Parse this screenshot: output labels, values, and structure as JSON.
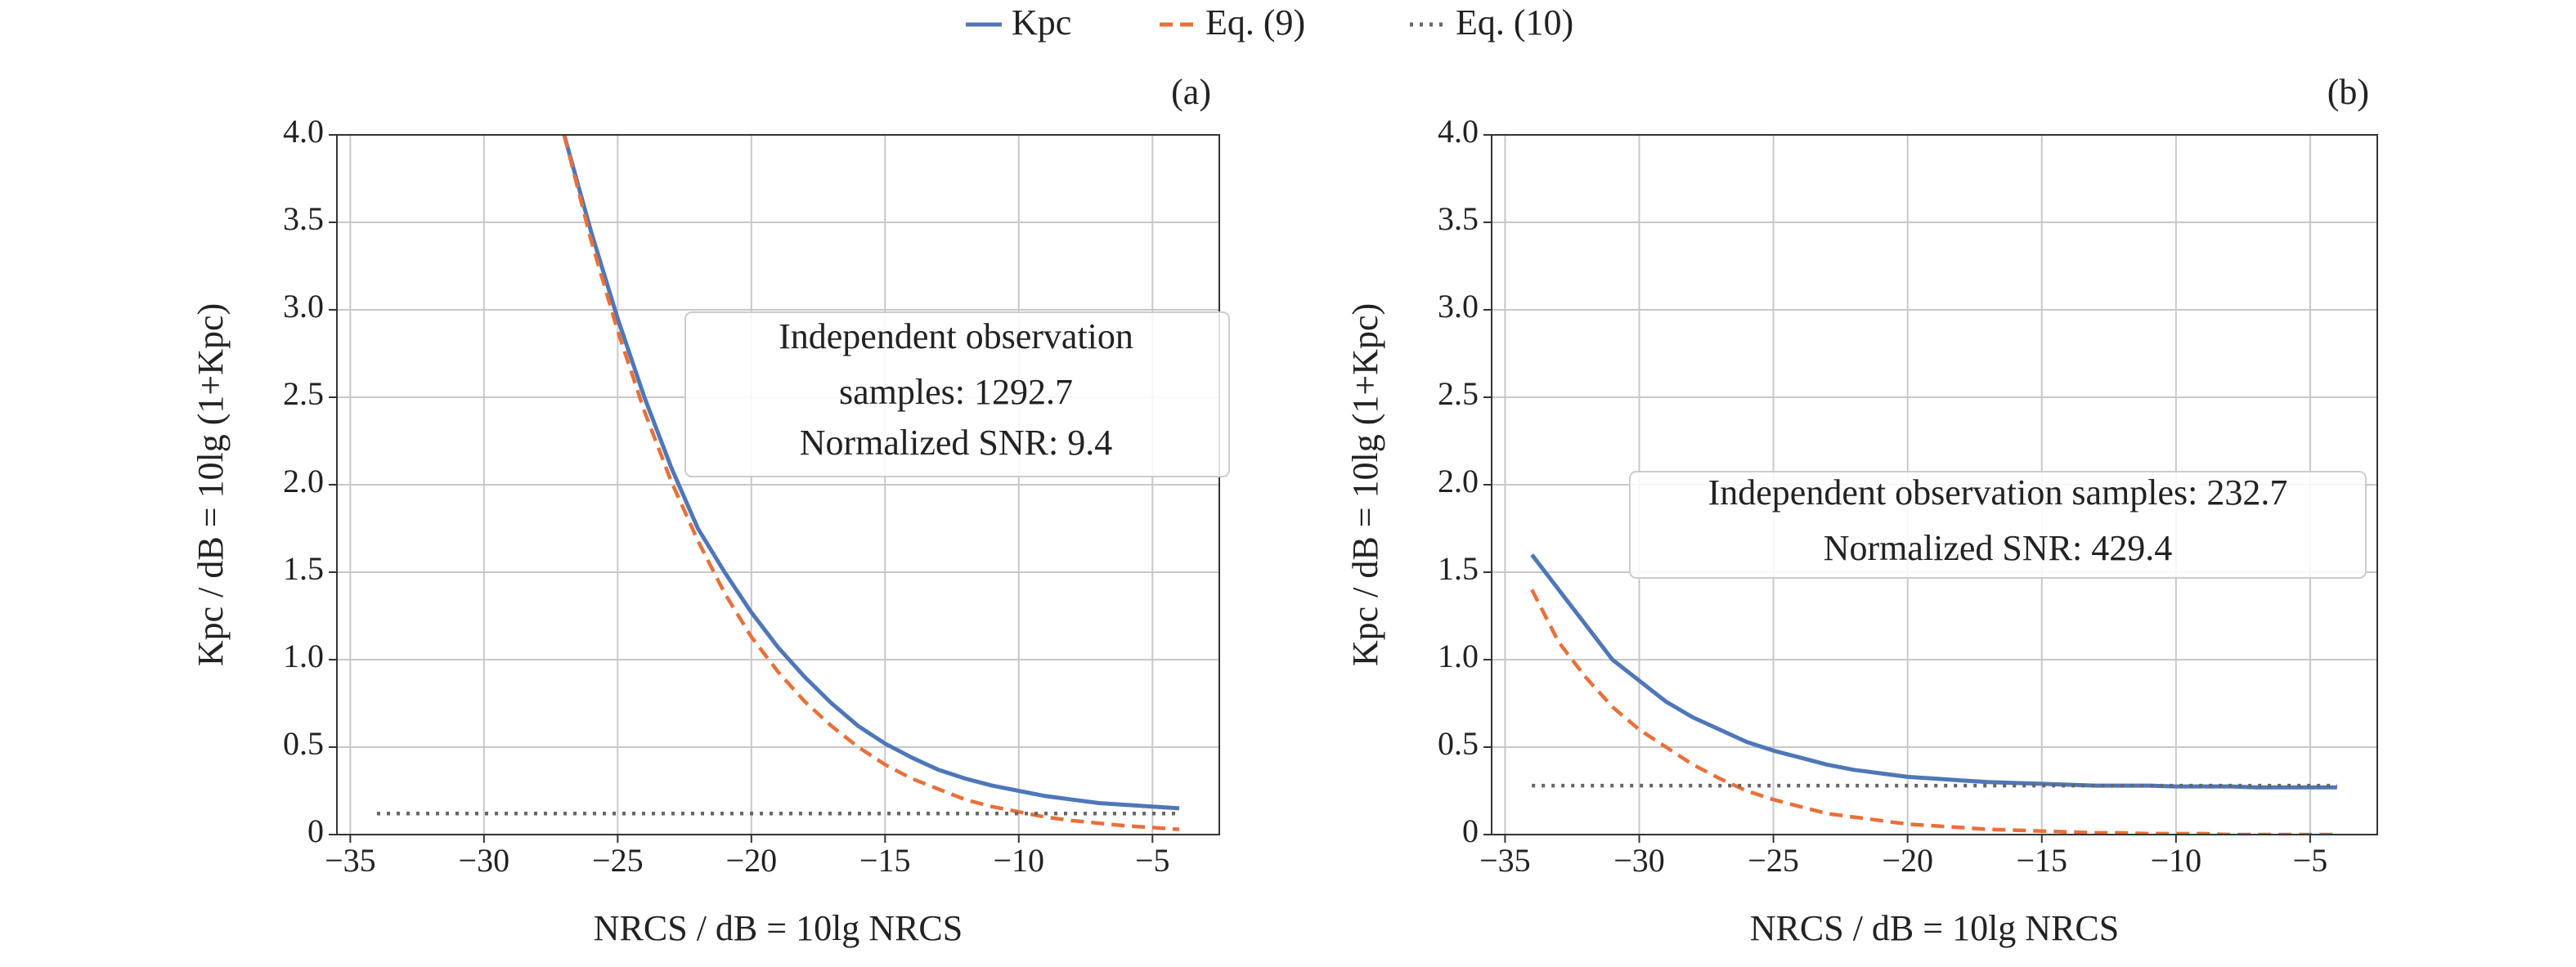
{
  "chart_data": [
    {
      "type": "line",
      "panel_label": "(a)",
      "xlabel": "NRCS / dB = 10lg NRCS",
      "ylabel": "Kpc / dB = 10lg (1+Kpc)",
      "annotation": [
        "Independent observation",
        "samples: 1292.7",
        "Normalized SNR: 9.4"
      ],
      "x": [
        -34,
        -33,
        -32,
        -31,
        -30,
        -29,
        -28,
        -27,
        -26,
        -25,
        -24,
        -23,
        -22,
        -21,
        -20,
        -19,
        -18,
        -17,
        -16,
        -15,
        -14,
        -13,
        -12,
        -11,
        -10,
        -9,
        -8,
        -7,
        -6,
        -5,
        -4
      ],
      "series": [
        {
          "name": "Kpc",
          "color": "#4f77b8",
          "style": "solid",
          "values": [
            null,
            null,
            null,
            null,
            null,
            null,
            null,
            4.0,
            3.45,
            2.95,
            2.5,
            2.1,
            1.75,
            1.5,
            1.27,
            1.07,
            0.9,
            0.75,
            0.62,
            0.52,
            0.44,
            0.37,
            0.32,
            0.28,
            0.25,
            0.22,
            0.2,
            0.18,
            0.17,
            0.16,
            0.15
          ]
        },
        {
          "name": "Eq. (9)",
          "color": "#e8703a",
          "style": "dashed",
          "values": [
            null,
            null,
            null,
            null,
            null,
            null,
            null,
            4.0,
            3.4,
            2.88,
            2.42,
            2.02,
            1.68,
            1.38,
            1.13,
            0.93,
            0.76,
            0.62,
            0.5,
            0.4,
            0.32,
            0.26,
            0.2,
            0.16,
            0.13,
            0.1,
            0.08,
            0.065,
            0.05,
            0.04,
            0.03
          ]
        },
        {
          "name": "Eq. (10)",
          "color": "#666666",
          "style": "dotted",
          "values": [
            0.12,
            0.12,
            0.12,
            0.12,
            0.12,
            0.12,
            0.12,
            0.12,
            0.12,
            0.12,
            0.12,
            0.12,
            0.12,
            0.12,
            0.12,
            0.12,
            0.12,
            0.12,
            0.12,
            0.12,
            0.12,
            0.12,
            0.12,
            0.12,
            0.12,
            0.12,
            0.12,
            0.12,
            0.12,
            0.12,
            0.12
          ]
        }
      ],
      "xlim": [
        -35.5,
        -2.5
      ],
      "xticks": [
        {
          "value": -35,
          "label": "−35"
        },
        {
          "value": -30,
          "label": "−30"
        },
        {
          "value": -25,
          "label": "−25"
        },
        {
          "value": -20,
          "label": "−20"
        },
        {
          "value": -15,
          "label": "−15"
        },
        {
          "value": -10,
          "label": "−10"
        },
        {
          "value": -5,
          "label": "−5"
        }
      ],
      "ylim": [
        0,
        4
      ],
      "yticks": [
        0,
        0.5,
        {
          "value": 1,
          "label": "1.0"
        },
        1.5,
        {
          "value": 2,
          "label": "2.0"
        },
        2.5,
        {
          "value": 3,
          "label": "3.0"
        },
        3.5,
        {
          "value": 4,
          "label": "4.0"
        }
      ],
      "grid": true
    },
    {
      "type": "line",
      "panel_label": "(b)",
      "xlabel": "NRCS / dB = 10lg NRCS",
      "ylabel": "Kpc / dB = 10lg (1+Kpc)",
      "annotation": [
        "Independent observation samples: 232.7",
        "Normalized SNR: 429.4"
      ],
      "x": [
        -34,
        -33,
        -32,
        -31,
        -30,
        -29,
        -28,
        -27,
        -26,
        -25,
        -24,
        -23,
        -22,
        -21,
        -20,
        -19,
        -18,
        -17,
        -16,
        -15,
        -14,
        -13,
        -12,
        -11,
        -10,
        -9,
        -8,
        -7,
        -6,
        -5,
        -4
      ],
      "series": [
        {
          "color": "#4f77b8",
          "style": "solid",
          "values": [
            1.6,
            1.4,
            1.2,
            1.0,
            0.88,
            0.76,
            0.67,
            0.6,
            0.53,
            0.48,
            0.44,
            0.4,
            0.37,
            0.35,
            0.33,
            0.32,
            0.31,
            0.3,
            0.295,
            0.29,
            0.285,
            0.28,
            0.28,
            0.28,
            0.275,
            0.275,
            0.275,
            0.27,
            0.27,
            0.27,
            0.27
          ]
        },
        {
          "color": "#e8703a",
          "style": "dashed",
          "values": [
            1.4,
            1.1,
            0.9,
            0.73,
            0.6,
            0.5,
            0.4,
            0.32,
            0.25,
            0.2,
            0.16,
            0.12,
            0.1,
            0.08,
            0.06,
            0.05,
            0.04,
            0.03,
            0.025,
            0.02,
            0.015,
            0.01,
            0.01,
            0.005,
            0.005,
            0.005,
            0.0,
            0.0,
            0.0,
            0.0,
            0.0
          ]
        },
        {
          "color": "#666666",
          "style": "dotted",
          "values": [
            0.28,
            0.28,
            0.28,
            0.28,
            0.28,
            0.28,
            0.28,
            0.28,
            0.28,
            0.28,
            0.28,
            0.28,
            0.28,
            0.28,
            0.28,
            0.28,
            0.28,
            0.28,
            0.28,
            0.28,
            0.28,
            0.28,
            0.28,
            0.28,
            0.28,
            0.28,
            0.28,
            0.28,
            0.28,
            0.28,
            0.28
          ]
        }
      ],
      "xlim": [
        -35.5,
        -2.5
      ],
      "xticks": [
        {
          "value": -35,
          "label": "−35"
        },
        {
          "value": -30,
          "label": "−30"
        },
        {
          "value": -25,
          "label": "−25"
        },
        {
          "value": -20,
          "label": "−20"
        },
        {
          "value": -15,
          "label": "−15"
        },
        {
          "value": -10,
          "label": "−10"
        },
        {
          "value": -5,
          "label": "−5"
        }
      ],
      "ylim": [
        0,
        4
      ],
      "yticks": [
        0,
        0.5,
        {
          "value": 1,
          "label": "1.0"
        },
        1.5,
        {
          "value": 2,
          "label": "2.0"
        },
        2.5,
        {
          "value": 3,
          "label": "3.0"
        },
        3.5,
        {
          "value": 4,
          "label": "4.0"
        }
      ],
      "grid": true
    }
  ]
}
